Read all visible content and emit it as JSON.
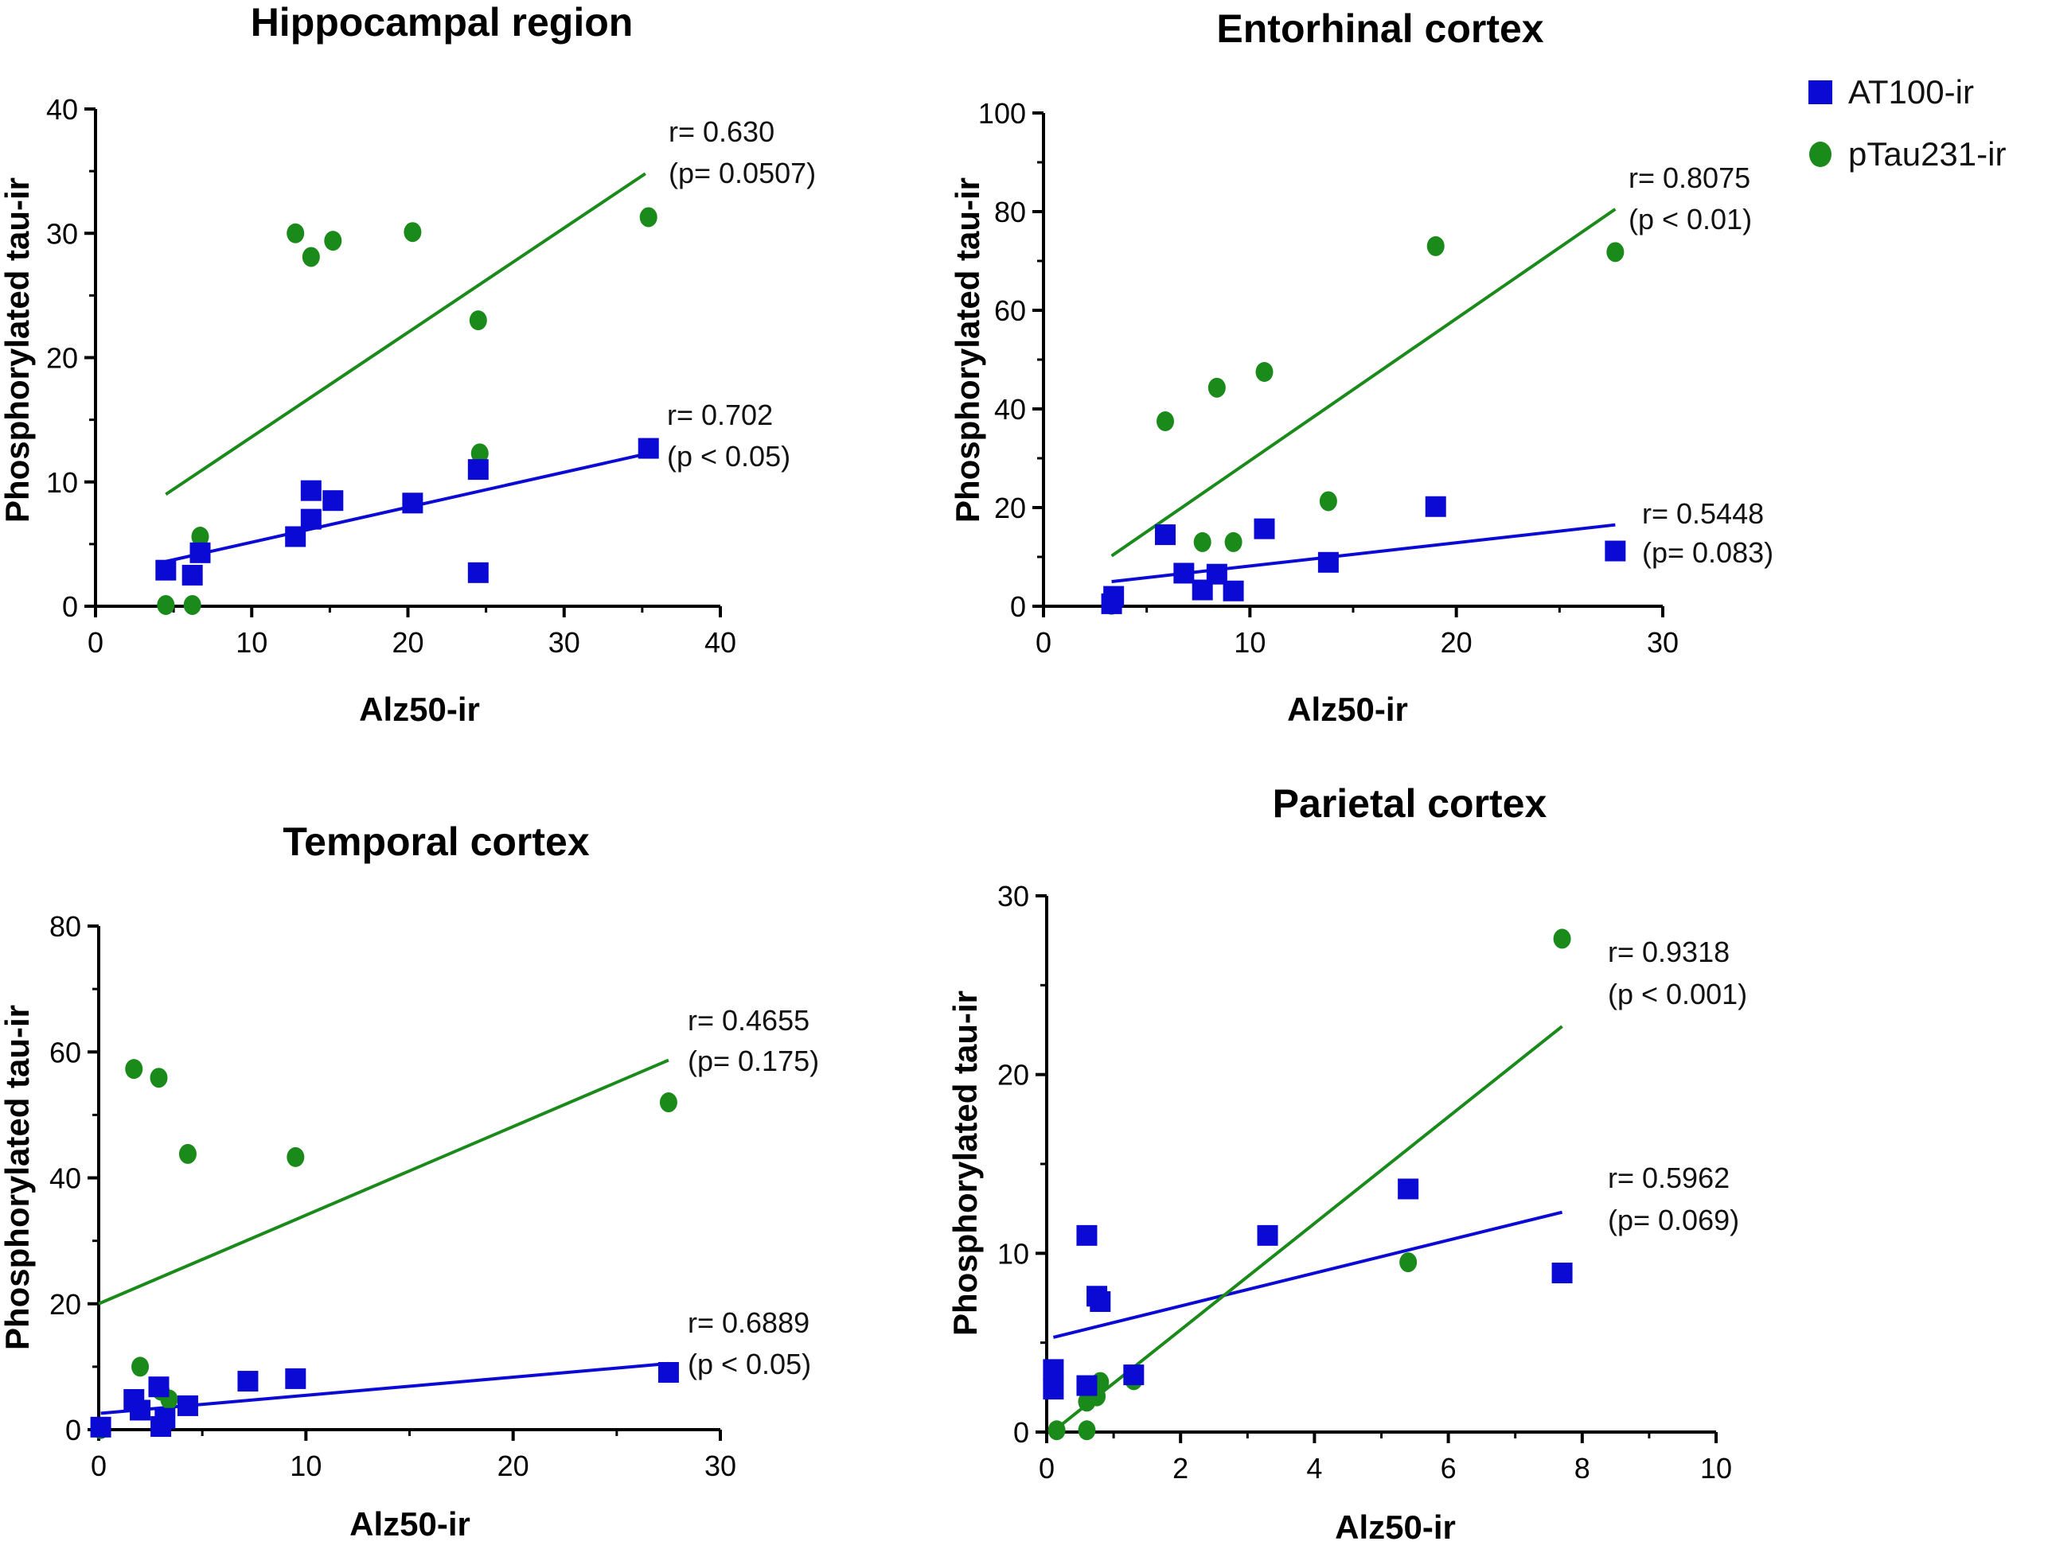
{
  "legend": {
    "items": [
      {
        "label": "AT100-ir",
        "marker": "square",
        "color": "#0a0ad4"
      },
      {
        "label": "pTau231-ir",
        "marker": "circle",
        "color": "#1a8a1a"
      }
    ]
  },
  "colors": {
    "at100": "#0a0ad4",
    "ptau231": "#1a8a1a"
  },
  "chart_data": [
    {
      "type": "scatter",
      "title": "Hippocampal region",
      "xlabel": "Alz50-ir",
      "ylabel": "Phosphorylated tau-ir",
      "xlim": [
        0,
        40
      ],
      "ylim": [
        0,
        40
      ],
      "xticks": [
        0,
        10,
        20,
        30,
        40
      ],
      "yticks": [
        0,
        10,
        20,
        30,
        40
      ],
      "series": [
        {
          "name": "AT100-ir",
          "marker": "square",
          "points": [
            [
              4.5,
              2.9
            ],
            [
              6.2,
              2.5
            ],
            [
              6.7,
              4.3
            ],
            [
              12.8,
              5.6
            ],
            [
              13.8,
              7.0
            ],
            [
              13.8,
              9.3
            ],
            [
              15.2,
              8.5
            ],
            [
              20.3,
              8.3
            ],
            [
              24.5,
              11.0
            ],
            [
              24.5,
              2.7
            ],
            [
              35.4,
              12.7
            ]
          ],
          "fit": [
            [
              4.5,
              3.6
            ],
            [
              35.4,
              12.3
            ]
          ],
          "annotation": [
            "r= 0.702",
            "(p < 0.05)"
          ]
        },
        {
          "name": "pTau231-ir",
          "marker": "circle",
          "points": [
            [
              4.5,
              0.1
            ],
            [
              6.2,
              0.1
            ],
            [
              6.7,
              5.6
            ],
            [
              12.8,
              30.0
            ],
            [
              13.8,
              28.1
            ],
            [
              15.2,
              29.4
            ],
            [
              20.3,
              30.1
            ],
            [
              24.5,
              23.0
            ],
            [
              24.6,
              12.3
            ],
            [
              35.4,
              31.3
            ]
          ],
          "fit": [
            [
              4.5,
              9.0
            ],
            [
              35.2,
              34.8
            ]
          ],
          "annotation": [
            "r= 0.630",
            "(p= 0.0507)"
          ]
        }
      ]
    },
    {
      "type": "scatter",
      "title": "Entorhinal cortex",
      "xlabel": "Alz50-ir",
      "ylabel": "Phosphorylated tau-ir",
      "xlim": [
        0,
        30
      ],
      "ylim": [
        0,
        100
      ],
      "xticks": [
        0,
        10,
        20,
        30
      ],
      "yticks": [
        0,
        20,
        40,
        60,
        80,
        100
      ],
      "series": [
        {
          "name": "AT100-ir",
          "marker": "square",
          "points": [
            [
              3.3,
              0.5
            ],
            [
              3.4,
              2.0
            ],
            [
              5.9,
              14.5
            ],
            [
              6.8,
              6.7
            ],
            [
              7.7,
              3.3
            ],
            [
              8.4,
              6.5
            ],
            [
              9.2,
              3.1
            ],
            [
              10.7,
              15.7
            ],
            [
              13.8,
              8.9
            ],
            [
              19.0,
              20.2
            ],
            [
              27.7,
              11.2
            ]
          ],
          "fit": [
            [
              3.3,
              5.0
            ],
            [
              27.7,
              16.5
            ]
          ],
          "annotation": [
            "r= 0.5448",
            "(p= 0.083)"
          ]
        },
        {
          "name": "pTau231-ir",
          "marker": "circle",
          "points": [
            [
              3.3,
              0.3
            ],
            [
              5.9,
              37.5
            ],
            [
              7.7,
              13.0
            ],
            [
              8.4,
              44.3
            ],
            [
              9.2,
              13.0
            ],
            [
              10.7,
              47.5
            ],
            [
              13.8,
              21.3
            ],
            [
              19.0,
              73.0
            ],
            [
              27.7,
              71.8
            ]
          ],
          "fit": [
            [
              3.3,
              10.2
            ],
            [
              27.7,
              80.5
            ]
          ],
          "annotation": [
            "r= 0.8075",
            "(p < 0.01)"
          ]
        }
      ]
    },
    {
      "type": "scatter",
      "title": "Temporal cortex",
      "xlabel": "Alz50-ir",
      "ylabel": "Phosphorylated tau-ir",
      "xlim": [
        0,
        30
      ],
      "ylim": [
        0,
        80
      ],
      "xticks": [
        0,
        10,
        20,
        30
      ],
      "yticks": [
        0,
        20,
        40,
        60,
        80
      ],
      "series": [
        {
          "name": "AT100-ir",
          "marker": "square",
          "points": [
            [
              0.1,
              0.4
            ],
            [
              1.7,
              4.8
            ],
            [
              2.0,
              3.1
            ],
            [
              2.9,
              6.8
            ],
            [
              3.0,
              0.5
            ],
            [
              3.2,
              1.8
            ],
            [
              4.3,
              3.8
            ],
            [
              7.2,
              7.7
            ],
            [
              9.5,
              8.1
            ],
            [
              27.5,
              9.1
            ]
          ],
          "fit": [
            [
              0.1,
              2.6
            ],
            [
              27.5,
              10.5
            ]
          ],
          "annotation": [
            "r= 0.6889",
            "(p < 0.05)"
          ]
        },
        {
          "name": "pTau231-ir",
          "marker": "circle",
          "points": [
            [
              0.1,
              0.1
            ],
            [
              1.7,
              57.3
            ],
            [
              2.0,
              10.0
            ],
            [
              2.9,
              55.9
            ],
            [
              3.0,
              6.2
            ],
            [
              3.4,
              4.8
            ],
            [
              4.3,
              43.8
            ],
            [
              9.5,
              43.3
            ],
            [
              27.5,
              52.0
            ]
          ],
          "fit": [
            [
              0.0,
              20.0
            ],
            [
              27.5,
              58.7
            ]
          ],
          "annotation": [
            "r= 0.4655",
            "(p= 0.175)"
          ]
        }
      ]
    },
    {
      "type": "scatter",
      "title": "Parietal cortex",
      "xlabel": "Alz50-ir",
      "ylabel": "Phosphorylated tau-ir",
      "xlim": [
        0,
        10
      ],
      "ylim": [
        0,
        30
      ],
      "xticks": [
        0,
        2,
        4,
        6,
        8,
        10
      ],
      "yticks": [
        0,
        10,
        20,
        30
      ],
      "series": [
        {
          "name": "AT100-ir",
          "marker": "square",
          "points": [
            [
              0.1,
              3.5
            ],
            [
              0.1,
              2.4
            ],
            [
              0.6,
              11.0
            ],
            [
              0.6,
              2.6
            ],
            [
              0.75,
              7.6
            ],
            [
              0.8,
              7.3
            ],
            [
              1.3,
              3.2
            ],
            [
              3.3,
              11.0
            ],
            [
              5.4,
              13.6
            ],
            [
              7.7,
              8.9
            ]
          ],
          "fit": [
            [
              0.1,
              5.3
            ],
            [
              7.7,
              12.3
            ]
          ],
          "annotation": [
            "r= 0.5962",
            "(p= 0.069)"
          ]
        },
        {
          "name": "pTau231-ir",
          "marker": "circle",
          "points": [
            [
              0.1,
              3.2
            ],
            [
              0.15,
              0.1
            ],
            [
              0.6,
              1.7
            ],
            [
              0.6,
              0.1
            ],
            [
              0.75,
              2.0
            ],
            [
              0.8,
              2.8
            ],
            [
              1.3,
              2.9
            ],
            [
              5.4,
              9.5
            ],
            [
              7.7,
              27.6
            ]
          ],
          "fit": [
            [
              0.15,
              0.2
            ],
            [
              7.7,
              22.7
            ]
          ],
          "annotation": [
            "r= 0.9318",
            "(p < 0.001)"
          ]
        }
      ]
    }
  ]
}
